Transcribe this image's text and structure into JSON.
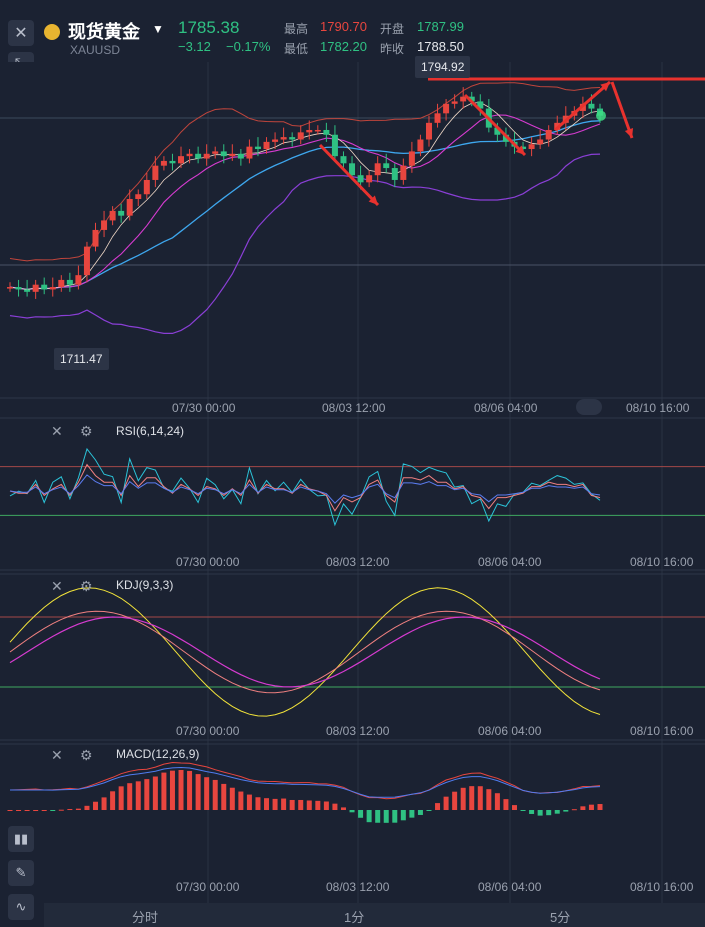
{
  "header": {
    "name": "现货黄金",
    "symbol": "XAUUSD",
    "price": "1785.38",
    "change": "−3.12",
    "change_pct": "−0.17%",
    "stats": {
      "high_label": "最高",
      "high_value": "1790.70",
      "open_label": "开盘",
      "open_value": "1787.99",
      "low_label": "最低",
      "low_value": "1782.20",
      "prev_close_label": "昨收",
      "prev_close_value": "1788.50"
    },
    "colors": {
      "up": "#e8463f",
      "down": "#2fc183",
      "brand": "#e8b430"
    }
  },
  "price_tags": {
    "high": "1794.92",
    "low": "1711.47"
  },
  "time_axis": [
    "07/30 00:00",
    "08/03 12:00",
    "08/06 04:00",
    "08/10 16:00"
  ],
  "indicators": {
    "rsi": {
      "label": "RSI(6,14,24)"
    },
    "kdj": {
      "label": "KDJ(9,3,3)"
    },
    "macd": {
      "label": "MACD(12,26,9)"
    }
  },
  "tabs": [
    {
      "label": "分时"
    },
    {
      "label": "1分"
    },
    {
      "label": "5分"
    }
  ],
  "chart_data": {
    "type": "candlestick",
    "symbol": "XAUUSD",
    "ylim": [
      1700,
      1800
    ],
    "marked_high": 1794.92,
    "marked_low": 1711.47,
    "x_ticks": [
      "07/30 00:00",
      "08/03 12:00",
      "08/06 04:00",
      "08/10 16:00"
    ],
    "closes": [
      1713,
      1712,
      1711,
      1714,
      1712,
      1713,
      1716,
      1714,
      1718,
      1730,
      1737,
      1741,
      1745,
      1743,
      1750,
      1752,
      1758,
      1764,
      1766,
      1765,
      1768,
      1769,
      1767,
      1769,
      1770,
      1768,
      1769,
      1767,
      1772,
      1771,
      1774,
      1775,
      1776,
      1775,
      1778,
      1779,
      1779,
      1777,
      1768,
      1765,
      1760,
      1757,
      1760,
      1765,
      1763,
      1758,
      1764,
      1770,
      1775,
      1782,
      1786,
      1790,
      1791,
      1793,
      1791,
      1788,
      1780,
      1777,
      1774,
      1772,
      1771,
      1773,
      1775,
      1779,
      1782,
      1785,
      1787,
      1790,
      1788,
      1785
    ],
    "series": [
      {
        "name": "RSI",
        "panel": "rsi",
        "range": [
          0,
          100
        ]
      },
      {
        "name": "KDJ",
        "panel": "kdj",
        "range": [
          0,
          100
        ]
      },
      {
        "name": "MACD",
        "panel": "macd"
      }
    ]
  }
}
